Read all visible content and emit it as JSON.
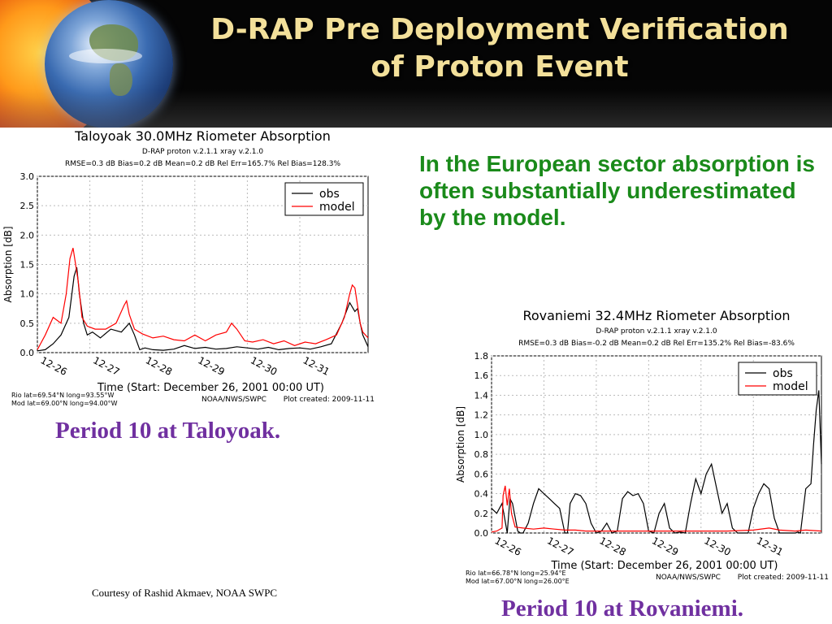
{
  "title_line1": "D-RAP Pre Deployment Verification",
  "title_line2": "of Proton Event",
  "note": "In the European sector absorption is often substantially underestimated by the model.",
  "caption_taloyoak": "Period 10 at Taloyoak.",
  "caption_rovaniemi": "Period 10 at Rovaniemi.",
  "credit": "Courtesy of Rashid Akmaev, NOAA SWPC",
  "colors": {
    "obs": "#000000",
    "model": "#ff0000",
    "note": "#1a8a1a",
    "caption": "#7030a0",
    "title": "#f3e09a"
  },
  "chart_data": [
    {
      "type": "line",
      "title": "Taloyoak 30.0MHz Riometer Absorption",
      "subtitle": "D-RAP proton v.2.1.1  xray v.2.1.0",
      "stats": "RMSE=0.3 dB   Bias=0.2 dB   Mean=0.2 dB   Rel Err=165.7%   Rel Bias=128.3%",
      "xlabel": "Time (Start: December 26, 2001 00:00 UT)",
      "ylabel": "Absorption [dB]",
      "ylim": [
        0,
        3.0
      ],
      "yticks": [
        "0.0",
        "0.5",
        "1.0",
        "1.5",
        "2.0",
        "2.5",
        "3.0"
      ],
      "xlim": [
        0,
        6.3
      ],
      "xticks": [
        "12-26",
        "12-27",
        "12-28",
        "12-29",
        "12-30",
        "12-31"
      ],
      "grid": true,
      "legend": "top-right",
      "footer_left1": "Rio lat=69.54°N long=93.55°W",
      "footer_left2": "Mod lat=69.00°N long=94.00°W",
      "footer_mid": "NOAA/NWS/SWPC",
      "footer_right": "Plot created: 2009-11-11",
      "series": [
        {
          "name": "obs",
          "x": [
            0,
            0.15,
            0.3,
            0.45,
            0.6,
            0.7,
            0.75,
            0.8,
            0.88,
            0.95,
            1.05,
            1.2,
            1.4,
            1.6,
            1.75,
            1.85,
            1.95,
            2.05,
            2.2,
            2.4,
            2.6,
            2.8,
            3.0,
            3.2,
            3.4,
            3.6,
            3.8,
            4.0,
            4.2,
            4.4,
            4.6,
            4.8,
            5.0,
            5.2,
            5.4,
            5.6,
            5.8,
            5.95,
            6.05,
            6.1,
            6.15,
            6.2,
            6.3
          ],
          "values": [
            0.03,
            0.05,
            0.15,
            0.3,
            0.6,
            1.3,
            1.45,
            1.0,
            0.5,
            0.3,
            0.35,
            0.25,
            0.4,
            0.35,
            0.5,
            0.3,
            0.05,
            0.08,
            0.05,
            0.04,
            0.06,
            0.12,
            0.07,
            0.09,
            0.06,
            0.07,
            0.1,
            0.08,
            0.06,
            0.09,
            0.05,
            0.07,
            0.08,
            0.06,
            0.1,
            0.15,
            0.5,
            0.85,
            0.7,
            0.75,
            0.5,
            0.3,
            0.1
          ]
        },
        {
          "name": "model",
          "x": [
            0,
            0.15,
            0.3,
            0.45,
            0.55,
            0.62,
            0.68,
            0.72,
            0.78,
            0.85,
            0.95,
            1.1,
            1.3,
            1.5,
            1.65,
            1.7,
            1.75,
            1.85,
            2.0,
            2.2,
            2.4,
            2.6,
            2.8,
            3.0,
            3.2,
            3.4,
            3.6,
            3.7,
            3.8,
            3.95,
            4.1,
            4.3,
            4.5,
            4.7,
            4.9,
            5.1,
            5.3,
            5.5,
            5.7,
            5.85,
            5.95,
            6.0,
            6.05,
            6.1,
            6.15,
            6.2,
            6.3
          ],
          "values": [
            0.05,
            0.3,
            0.6,
            0.5,
            1.0,
            1.6,
            1.78,
            1.55,
            1.2,
            0.6,
            0.45,
            0.4,
            0.4,
            0.5,
            0.8,
            0.88,
            0.65,
            0.4,
            0.32,
            0.25,
            0.28,
            0.22,
            0.2,
            0.3,
            0.2,
            0.3,
            0.35,
            0.5,
            0.4,
            0.2,
            0.18,
            0.22,
            0.15,
            0.2,
            0.12,
            0.18,
            0.15,
            0.22,
            0.3,
            0.6,
            1.0,
            1.15,
            1.1,
            0.8,
            0.5,
            0.35,
            0.25
          ]
        }
      ]
    },
    {
      "type": "line",
      "title": "Rovaniemi 32.4MHz Riometer Absorption",
      "subtitle": "D-RAP proton v.2.1.1  xray v.2.1.0",
      "stats": "RMSE=0.3 dB   Bias=-0.2 dB   Mean=0.2 dB   Rel Err=135.2%   Rel Bias=-83.6%",
      "xlabel": "Time (Start: December 26, 2001 00:00 UT)",
      "ylabel": "Absorption [dB]",
      "ylim": [
        0,
        1.8
      ],
      "yticks": [
        "0.0",
        "0.2",
        "0.4",
        "0.6",
        "0.8",
        "1.0",
        "1.2",
        "1.4",
        "1.6",
        "1.8"
      ],
      "xlim": [
        0,
        6.3
      ],
      "xticks": [
        "12-26",
        "12-27",
        "12-28",
        "12-29",
        "12-30",
        "12-31"
      ],
      "grid": true,
      "legend": "top-right",
      "footer_left1": "Rio lat=66.78°N long=25.94°E",
      "footer_left2": "Mod lat=67.00°N long=26.00°E",
      "footer_mid": "NOAA/NWS/SWPC",
      "footer_right": "Plot created: 2009-11-11",
      "series": [
        {
          "name": "obs",
          "x": [
            0,
            0.1,
            0.2,
            0.3,
            0.35,
            0.4,
            0.5,
            0.55,
            0.6,
            0.7,
            0.8,
            0.9,
            1.0,
            1.1,
            1.2,
            1.3,
            1.4,
            1.45,
            1.5,
            1.6,
            1.7,
            1.8,
            1.9,
            2.0,
            2.1,
            2.2,
            2.3,
            2.4,
            2.5,
            2.6,
            2.7,
            2.8,
            2.9,
            3.0,
            3.1,
            3.2,
            3.3,
            3.4,
            3.5,
            3.6,
            3.7,
            3.8,
            3.9,
            4.0,
            4.1,
            4.2,
            4.3,
            4.4,
            4.5,
            4.6,
            4.7,
            4.8,
            4.9,
            5.0,
            5.1,
            5.2,
            5.3,
            5.4,
            5.5,
            5.6,
            5.7,
            5.8,
            5.85,
            5.9,
            6.0,
            6.1,
            6.15,
            6.2,
            6.25,
            6.3
          ],
          "values": [
            0.25,
            0.2,
            0.3,
            0.0,
            0.35,
            0.3,
            0.02,
            0.0,
            0.0,
            0.1,
            0.3,
            0.45,
            0.4,
            0.35,
            0.3,
            0.25,
            0.0,
            0.0,
            0.3,
            0.4,
            0.38,
            0.3,
            0.1,
            0.0,
            0.02,
            0.1,
            0.0,
            0.02,
            0.35,
            0.42,
            0.38,
            0.4,
            0.3,
            0.02,
            0.0,
            0.2,
            0.3,
            0.05,
            0.0,
            0.01,
            0.0,
            0.3,
            0.55,
            0.4,
            0.6,
            0.7,
            0.45,
            0.2,
            0.3,
            0.05,
            0.0,
            0.0,
            0.0,
            0.25,
            0.4,
            0.5,
            0.45,
            0.15,
            0.0,
            0.0,
            0.0,
            0.0,
            0.01,
            0.0,
            0.45,
            0.5,
            0.9,
            1.25,
            1.45,
            0.7
          ]
        },
        {
          "name": "model",
          "x": [
            0,
            0.1,
            0.2,
            0.22,
            0.26,
            0.3,
            0.34,
            0.38,
            0.45,
            0.6,
            0.8,
            1.0,
            1.2,
            1.4,
            1.6,
            1.8,
            2.0,
            2.5,
            3.0,
            3.5,
            4.0,
            4.5,
            5.0,
            5.3,
            5.5,
            5.8,
            6.0,
            6.3
          ],
          "values": [
            0.01,
            0.02,
            0.05,
            0.38,
            0.48,
            0.28,
            0.45,
            0.2,
            0.06,
            0.05,
            0.04,
            0.05,
            0.04,
            0.03,
            0.03,
            0.02,
            0.02,
            0.02,
            0.02,
            0.02,
            0.02,
            0.02,
            0.03,
            0.05,
            0.03,
            0.02,
            0.03,
            0.02
          ]
        }
      ]
    }
  ]
}
